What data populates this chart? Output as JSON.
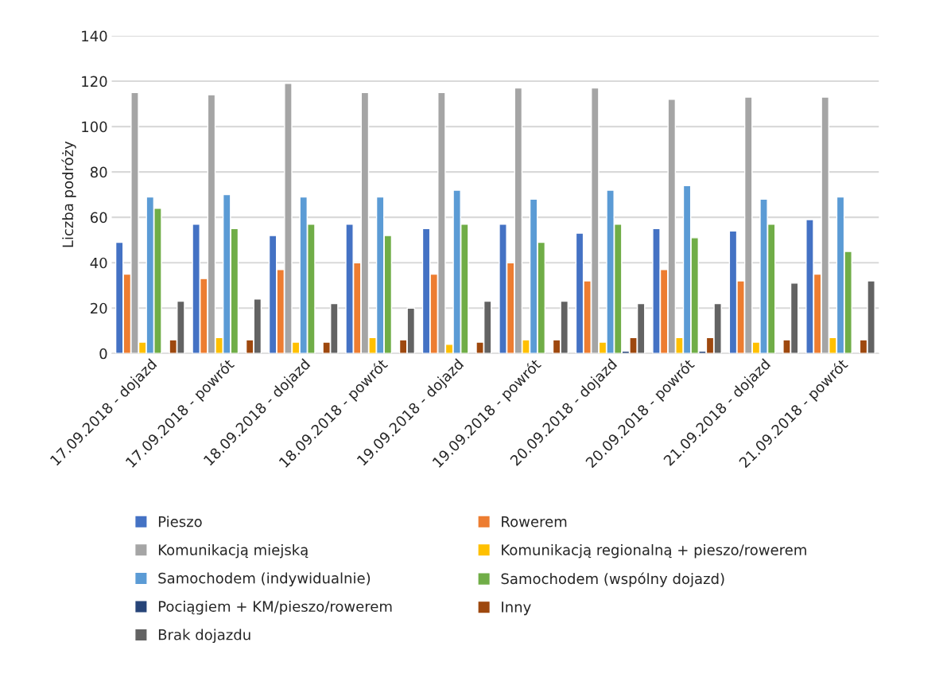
{
  "chart_data": {
    "type": "bar",
    "ylabel": "Liczba podróży",
    "categories": [
      "17.09.2018 - dojazd",
      "17.09.2018 - powrót",
      "18.09.2018 - dojazd",
      "18.09.2018 - powrót",
      "19.09.2018 - dojazd",
      "19.09.2018 - powrót",
      "20.09.2018 - dojazd",
      "20.09.2018 - powrót",
      "21.09.2018 - dojazd",
      "21.09.2018 - powrót"
    ],
    "series": [
      {
        "name": "Pieszo",
        "color": "#4472c4",
        "values": [
          49,
          57,
          52,
          57,
          55,
          57,
          53,
          55,
          54,
          59
        ]
      },
      {
        "name": "Rowerem",
        "color": "#ed7d31",
        "values": [
          35,
          33,
          37,
          40,
          35,
          40,
          32,
          37,
          32,
          35
        ]
      },
      {
        "name": "Komunikacją miejską",
        "color": "#a5a5a5",
        "values": [
          115,
          114,
          119,
          115,
          115,
          117,
          117,
          112,
          113,
          113
        ]
      },
      {
        "name": "Komunikacją regionalną + pieszo/rowerem",
        "color": "#ffc000",
        "values": [
          5,
          7,
          5,
          7,
          4,
          6,
          5,
          7,
          5,
          7
        ]
      },
      {
        "name": "Samochodem (indywidualnie)",
        "color": "#5b9bd5",
        "values": [
          69,
          70,
          69,
          69,
          72,
          68,
          72,
          74,
          68,
          69
        ]
      },
      {
        "name": "Samochodem (wspólny dojazd)",
        "color": "#70ad47",
        "values": [
          64,
          55,
          57,
          52,
          57,
          49,
          57,
          51,
          57,
          45
        ]
      },
      {
        "name": "Pociągiem + KM/pieszo/rowerem",
        "color": "#264478",
        "values": [
          null,
          null,
          null,
          null,
          null,
          null,
          1,
          1,
          null,
          null
        ]
      },
      {
        "name": "Inny",
        "color": "#9e480e",
        "values": [
          6,
          6,
          5,
          6,
          5,
          6,
          7,
          7,
          6,
          6
        ]
      },
      {
        "name": "Brak dojazdu",
        "color": "#636363",
        "values": [
          23,
          24,
          22,
          20,
          23,
          23,
          22,
          22,
          31,
          32
        ]
      }
    ],
    "ylim": [
      0,
      140
    ],
    "yticks": [
      0,
      20,
      40,
      60,
      80,
      100,
      120,
      140
    ],
    "grid": "y",
    "legend": "bottom"
  }
}
